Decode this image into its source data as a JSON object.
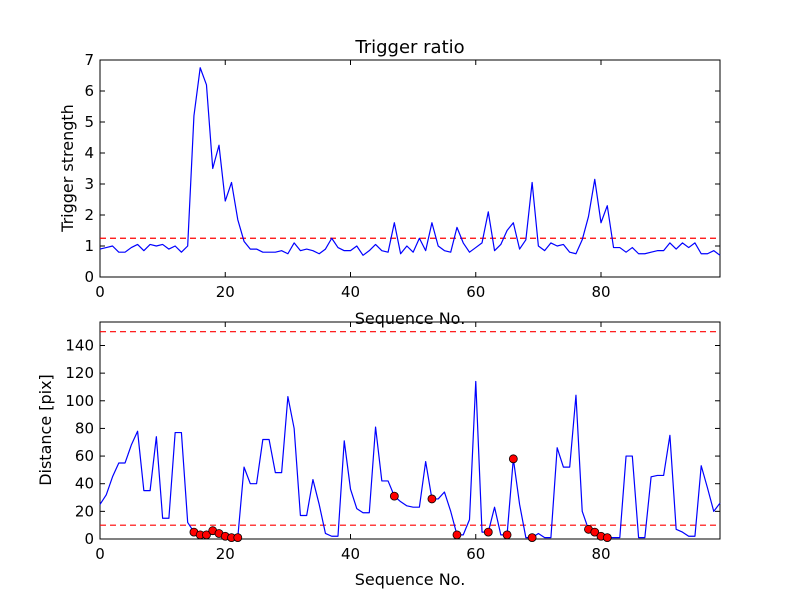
{
  "chart_data": [
    {
      "type": "line",
      "title": "Trigger ratio",
      "xlabel": "Sequence No.",
      "ylabel": "Trigger strength",
      "xlim": [
        0,
        99
      ],
      "ylim": [
        0,
        7
      ],
      "xticks": [
        "0",
        "20",
        "40",
        "60",
        "80"
      ],
      "yticks": [
        "0",
        "1",
        "2",
        "3",
        "4",
        "5",
        "6",
        "7"
      ],
      "grid": false,
      "line_color": "#0000ff",
      "threshold_color": "#ff0000",
      "threshold": 1.25,
      "x": [
        0,
        1,
        2,
        3,
        4,
        5,
        6,
        7,
        8,
        9,
        10,
        11,
        12,
        13,
        14,
        15,
        16,
        17,
        18,
        19,
        20,
        21,
        22,
        23,
        24,
        25,
        26,
        27,
        28,
        29,
        30,
        31,
        32,
        33,
        34,
        35,
        36,
        37,
        38,
        39,
        40,
        41,
        42,
        43,
        44,
        45,
        46,
        47,
        48,
        49,
        50,
        51,
        52,
        53,
        54,
        55,
        56,
        57,
        58,
        59,
        60,
        61,
        62,
        63,
        64,
        65,
        66,
        67,
        68,
        69,
        70,
        71,
        72,
        73,
        74,
        75,
        76,
        77,
        78,
        79,
        80,
        81,
        82,
        83,
        84,
        85,
        86,
        87,
        88,
        89,
        90,
        91,
        92,
        93,
        94,
        95,
        96,
        97,
        98,
        99
      ],
      "values": [
        0.9,
        0.95,
        1.0,
        0.8,
        0.8,
        0.95,
        1.05,
        0.85,
        1.05,
        1.0,
        1.05,
        0.9,
        1.0,
        0.8,
        1.0,
        5.2,
        6.75,
        6.2,
        3.5,
        4.25,
        2.45,
        3.05,
        1.85,
        1.15,
        0.9,
        0.9,
        0.8,
        0.8,
        0.8,
        0.85,
        0.75,
        1.1,
        0.85,
        0.9,
        0.85,
        0.75,
        0.9,
        1.25,
        0.95,
        0.85,
        0.85,
        1.0,
        0.7,
        0.85,
        1.05,
        0.85,
        0.8,
        1.75,
        0.75,
        1.0,
        0.8,
        1.25,
        0.85,
        1.75,
        1.0,
        0.85,
        0.8,
        1.6,
        1.1,
        0.8,
        0.95,
        1.1,
        2.1,
        0.85,
        1.05,
        1.5,
        1.75,
        0.9,
        1.2,
        3.05,
        1.0,
        0.85,
        1.1,
        1.0,
        1.05,
        0.8,
        0.75,
        1.2,
        1.95,
        3.15,
        1.75,
        2.3,
        0.95,
        0.95,
        0.8,
        0.95,
        0.75,
        0.75,
        0.8,
        0.85,
        0.85,
        1.1,
        0.9,
        1.1,
        0.95,
        1.1,
        0.75,
        0.75,
        0.85,
        0.7
      ]
    },
    {
      "type": "line",
      "title": "",
      "xlabel": "Sequence No.",
      "ylabel": "Distance [pix]",
      "xlim": [
        0,
        99
      ],
      "ylim": [
        0,
        157
      ],
      "xticks": [
        "0",
        "20",
        "40",
        "60",
        "80"
      ],
      "yticks": [
        "0",
        "20",
        "40",
        "60",
        "80",
        "100",
        "120",
        "140"
      ],
      "grid": false,
      "line_color": "#0000ff",
      "marker_color": "#ff0000",
      "threshold_color": "#ff0000",
      "thresholds": [
        150,
        10
      ],
      "x": [
        0,
        1,
        2,
        3,
        4,
        5,
        6,
        7,
        8,
        9,
        10,
        11,
        12,
        13,
        14,
        15,
        16,
        17,
        18,
        19,
        20,
        21,
        22,
        23,
        24,
        25,
        26,
        27,
        28,
        29,
        30,
        31,
        32,
        33,
        34,
        35,
        36,
        37,
        38,
        39,
        40,
        41,
        42,
        43,
        44,
        45,
        46,
        47,
        48,
        49,
        50,
        51,
        52,
        53,
        54,
        55,
        56,
        57,
        58,
        59,
        60,
        61,
        62,
        63,
        64,
        65,
        66,
        67,
        68,
        69,
        70,
        71,
        72,
        73,
        74,
        75,
        76,
        77,
        78,
        79,
        80,
        81,
        82,
        83,
        84,
        85,
        86,
        87,
        88,
        89,
        90,
        91,
        92,
        93,
        94,
        95,
        96,
        97,
        98,
        99
      ],
      "values": [
        25,
        32,
        45,
        55,
        55,
        68,
        78,
        35,
        35,
        74,
        15,
        15,
        77,
        77,
        12,
        5,
        3,
        3,
        6,
        4,
        2,
        1,
        1,
        52,
        40,
        40,
        72,
        72,
        48,
        48,
        103,
        80,
        17,
        17,
        43,
        25,
        4,
        2,
        2,
        71,
        36,
        22,
        19,
        19,
        81,
        42,
        42,
        31,
        27,
        24,
        23,
        23,
        56,
        29,
        29,
        34,
        20,
        3,
        3,
        14,
        114,
        5,
        5,
        23,
        3,
        3,
        58,
        25,
        1,
        1,
        4,
        1,
        1,
        66,
        52,
        52,
        104,
        20,
        7,
        5,
        2,
        1,
        1,
        1,
        60,
        60,
        1,
        1,
        45,
        46,
        46,
        75,
        7,
        5,
        2,
        2,
        53,
        37,
        20,
        26
      ],
      "markers": [
        {
          "x": 15,
          "y": 5
        },
        {
          "x": 16,
          "y": 3
        },
        {
          "x": 17,
          "y": 3
        },
        {
          "x": 18,
          "y": 6
        },
        {
          "x": 19,
          "y": 4
        },
        {
          "x": 20,
          "y": 2
        },
        {
          "x": 21,
          "y": 1
        },
        {
          "x": 22,
          "y": 1
        },
        {
          "x": 47,
          "y": 31
        },
        {
          "x": 53,
          "y": 29
        },
        {
          "x": 57,
          "y": 3
        },
        {
          "x": 62,
          "y": 5
        },
        {
          "x": 65,
          "y": 3
        },
        {
          "x": 66,
          "y": 58
        },
        {
          "x": 69,
          "y": 1
        },
        {
          "x": 78,
          "y": 7
        },
        {
          "x": 79,
          "y": 5
        },
        {
          "x": 80,
          "y": 2
        },
        {
          "x": 81,
          "y": 1
        }
      ]
    }
  ]
}
